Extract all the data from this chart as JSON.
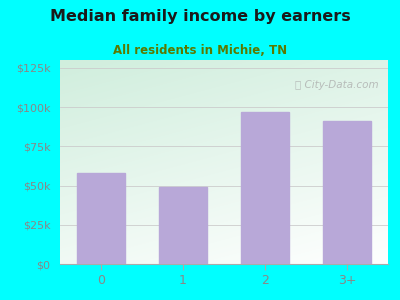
{
  "title": "Median family income by earners",
  "subtitle": "All residents in Michie, TN",
  "categories": [
    "0",
    "1",
    "2",
    "3+"
  ],
  "values": [
    58000,
    49000,
    97000,
    91000
  ],
  "bar_color": "#b8a8d8",
  "background_outer": "#00ffff",
  "background_inner_top_left": "#d0eedd",
  "background_inner_white": "#f8f8ff",
  "title_color": "#1a1a1a",
  "subtitle_color": "#5a7a00",
  "tick_label_color": "#888888",
  "ytick_labels": [
    "$0",
    "$25k",
    "$50k",
    "$75k",
    "$100k",
    "$125k"
  ],
  "ytick_values": [
    0,
    25000,
    50000,
    75000,
    100000,
    125000
  ],
  "ylim": [
    0,
    130000
  ],
  "watermark": "Ⓜ City-Data.com"
}
